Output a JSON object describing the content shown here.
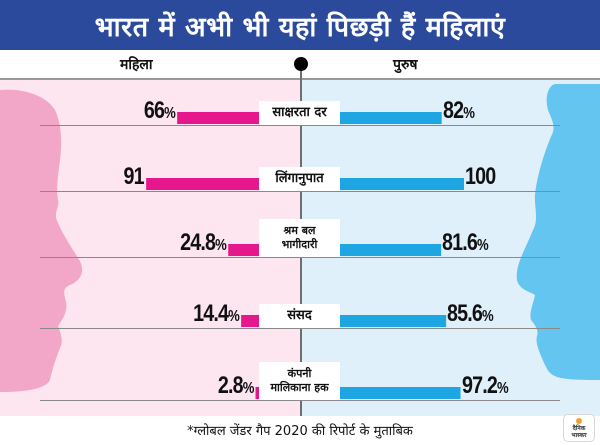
{
  "title": "भारत में अभी भी यहां पिछड़ी हैं महिलाएं",
  "columns": {
    "left": "महिला",
    "right": "पुरुष"
  },
  "colors": {
    "title_bg": "#2b4a9c",
    "women_bar": "#e6168c",
    "men_bar": "#1ea6e3",
    "women_panel": "#fde6f0",
    "men_panel": "#e0f0fb",
    "women_face": "#f3a7c8",
    "men_face": "#63c5f0"
  },
  "chart_data": {
    "type": "bar",
    "orientation": "horizontal-butterfly",
    "title": "भारत में अभी भी यहां पिछड़ी हैं महिलाएं",
    "categories": [
      "साक्षरता दर",
      "लिंगानुपात",
      "श्रम बल भागीदारी",
      "संसद",
      "कंपनी मालिकाना हक"
    ],
    "series": [
      {
        "name": "महिला",
        "values": [
          66,
          91,
          24.8,
          14.4,
          2.8
        ],
        "labels": [
          {
            "num": "66",
            "unit": "%"
          },
          {
            "num": "91",
            "unit": ""
          },
          {
            "num": "24.8",
            "unit": "%"
          },
          {
            "num": "14.4",
            "unit": "%"
          },
          {
            "num": "2.8",
            "unit": "%"
          }
        ]
      },
      {
        "name": "पुरुष",
        "values": [
          82,
          100,
          81.6,
          85.6,
          97.2
        ],
        "labels": [
          {
            "num": "82",
            "unit": "%"
          },
          {
            "num": "100",
            "unit": ""
          },
          {
            "num": "81.6",
            "unit": "%"
          },
          {
            "num": "85.6",
            "unit": "%"
          },
          {
            "num": "97.2",
            "unit": "%"
          }
        ]
      }
    ],
    "category_lines": [
      [
        "साक्षरता दर"
      ],
      [
        "लिंगानुपात"
      ],
      [
        "श्रम बल",
        "भागीदारी"
      ],
      [
        "संसद"
      ],
      [
        "कंपनी",
        "मालिकाना हक"
      ]
    ],
    "legend": "top",
    "grid": false
  },
  "footnote": "*ग्लोबल जेंडर गैप 2020 की रिपोर्ट के मुताबिक",
  "logo": {
    "line1": "दैनिक",
    "line2": "भास्कर"
  }
}
